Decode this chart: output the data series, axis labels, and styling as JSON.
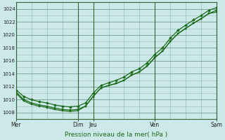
{
  "xlabel": "Pression niveau de la mer( hPa )",
  "background_color": "#cce8e8",
  "grid_color": "#99bbbb",
  "line_color": "#1a6b1a",
  "ylim": [
    1007,
    1025
  ],
  "yticks": [
    1008,
    1010,
    1012,
    1014,
    1016,
    1018,
    1020,
    1022,
    1024
  ],
  "xtick_labels": [
    "Mer",
    "Dim",
    "Jeu",
    "Ven",
    "Sam"
  ],
  "xtick_positions": [
    0,
    8,
    10,
    18,
    26
  ],
  "x_total": 26,
  "vline_positions": [
    0,
    8,
    10,
    18,
    26
  ],
  "line1_x": [
    0,
    1,
    2,
    3,
    4,
    5,
    6,
    7,
    8,
    9,
    10,
    11,
    12,
    13,
    14,
    15,
    16,
    17,
    18,
    19,
    20,
    21,
    22,
    23,
    24,
    25,
    26
  ],
  "line1_y": [
    1011.2,
    1010.0,
    1009.5,
    1009.2,
    1009.0,
    1008.7,
    1008.5,
    1008.4,
    1008.5,
    1009.0,
    1010.5,
    1011.8,
    1012.2,
    1012.5,
    1013.0,
    1013.8,
    1014.3,
    1015.2,
    1016.5,
    1017.5,
    1019.0,
    1020.2,
    1021.0,
    1021.8,
    1022.5,
    1023.3,
    1023.5
  ],
  "line2_x": [
    0,
    1,
    2,
    3,
    4,
    5,
    6,
    7,
    8,
    9,
    10,
    11,
    12,
    13,
    14,
    15,
    16,
    17,
    18,
    19,
    20,
    21,
    22,
    23,
    24,
    25,
    26
  ],
  "line2_y": [
    1011.0,
    1009.8,
    1009.3,
    1009.0,
    1008.8,
    1008.5,
    1008.3,
    1008.2,
    1008.3,
    1009.0,
    1010.5,
    1011.8,
    1012.2,
    1012.5,
    1013.0,
    1013.8,
    1014.3,
    1015.2,
    1016.5,
    1017.5,
    1019.0,
    1020.2,
    1021.0,
    1021.8,
    1022.5,
    1023.3,
    1023.8
  ],
  "line3_x": [
    0,
    1,
    2,
    3,
    4,
    5,
    6,
    7,
    8,
    9,
    10,
    11,
    12,
    13,
    14,
    15,
    16,
    17,
    18,
    19,
    20,
    21,
    22,
    23,
    24,
    25,
    26
  ],
  "line3_y": [
    1011.5,
    1010.5,
    1010.0,
    1009.7,
    1009.5,
    1009.2,
    1009.0,
    1008.9,
    1009.0,
    1009.5,
    1011.0,
    1012.2,
    1012.6,
    1013.0,
    1013.5,
    1014.3,
    1014.8,
    1015.7,
    1017.0,
    1018.0,
    1019.5,
    1020.7,
    1021.5,
    1022.3,
    1023.0,
    1023.8,
    1024.2
  ],
  "minor_grid_x_count": 5
}
